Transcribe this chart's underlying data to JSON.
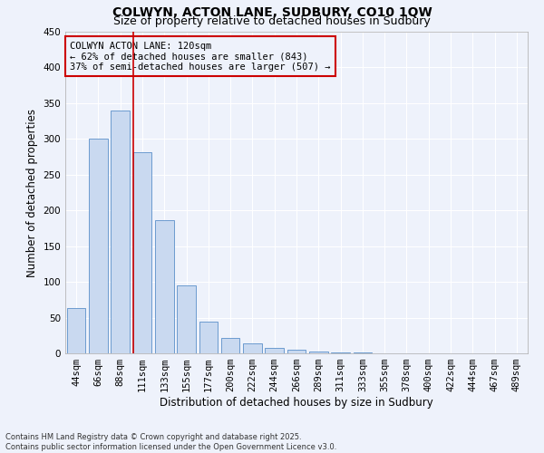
{
  "title": "COLWYN, ACTON LANE, SUDBURY, CO10 1QW",
  "subtitle": "Size of property relative to detached houses in Sudbury",
  "xlabel": "Distribution of detached houses by size in Sudbury",
  "ylabel": "Number of detached properties",
  "categories": [
    "44sqm",
    "66sqm",
    "88sqm",
    "111sqm",
    "133sqm",
    "155sqm",
    "177sqm",
    "200sqm",
    "222sqm",
    "244sqm",
    "266sqm",
    "289sqm",
    "311sqm",
    "333sqm",
    "355sqm",
    "378sqm",
    "400sqm",
    "422sqm",
    "444sqm",
    "467sqm",
    "489sqm"
  ],
  "values": [
    63,
    301,
    340,
    281,
    186,
    95,
    45,
    22,
    14,
    7,
    5,
    2,
    1,
    1,
    0,
    0,
    0,
    0,
    0,
    0,
    0
  ],
  "bar_color": "#c9d9f0",
  "bar_edge_color": "#5b8fc9",
  "vline_color": "#cc0000",
  "annotation_title": "COLWYN ACTON LANE: 120sqm",
  "annotation_line2": "← 62% of detached houses are smaller (843)",
  "annotation_line3": "37% of semi-detached houses are larger (507) →",
  "annotation_box_color": "#cc0000",
  "ylim": [
    0,
    450
  ],
  "yticks": [
    0,
    50,
    100,
    150,
    200,
    250,
    300,
    350,
    400,
    450
  ],
  "footer_line1": "Contains HM Land Registry data © Crown copyright and database right 2025.",
  "footer_line2": "Contains public sector information licensed under the Open Government Licence v3.0.",
  "background_color": "#eef2fb",
  "grid_color": "#ffffff",
  "title_fontsize": 10,
  "subtitle_fontsize": 9,
  "axis_label_fontsize": 8.5,
  "tick_fontsize": 7.5,
  "annotation_fontsize": 7.5,
  "footer_fontsize": 6
}
